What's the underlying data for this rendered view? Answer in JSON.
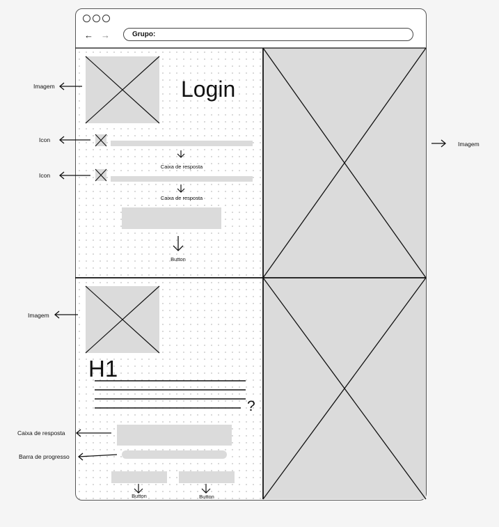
{
  "browser": {
    "window_buttons": [
      "close",
      "minimize",
      "maximize"
    ],
    "back_icon": "arrow-left-icon",
    "forward_icon": "arrow-right-icon",
    "address_text": "Grupo:"
  },
  "login_section": {
    "title": "Login",
    "field_caption_1": "Caixa de resposta",
    "field_caption_2": "Caixa de resposta",
    "button_caption": "Button"
  },
  "quiz_section": {
    "heading": "H1",
    "question_mark": "?",
    "button_caption_1": "Button",
    "button_caption_2": "Button"
  },
  "annotations": {
    "image_top": "Imagem",
    "icon_1": "Icon",
    "icon_2": "Icon",
    "image_right": "Imagem",
    "image_bottom": "Imagem",
    "answer_box": "Caixa de resposta",
    "progress_bar": "Barra de progresso"
  },
  "colors": {
    "placeholder_gray": "#dbdbdb",
    "stroke": "#111111",
    "background": "#f5f5f5"
  }
}
